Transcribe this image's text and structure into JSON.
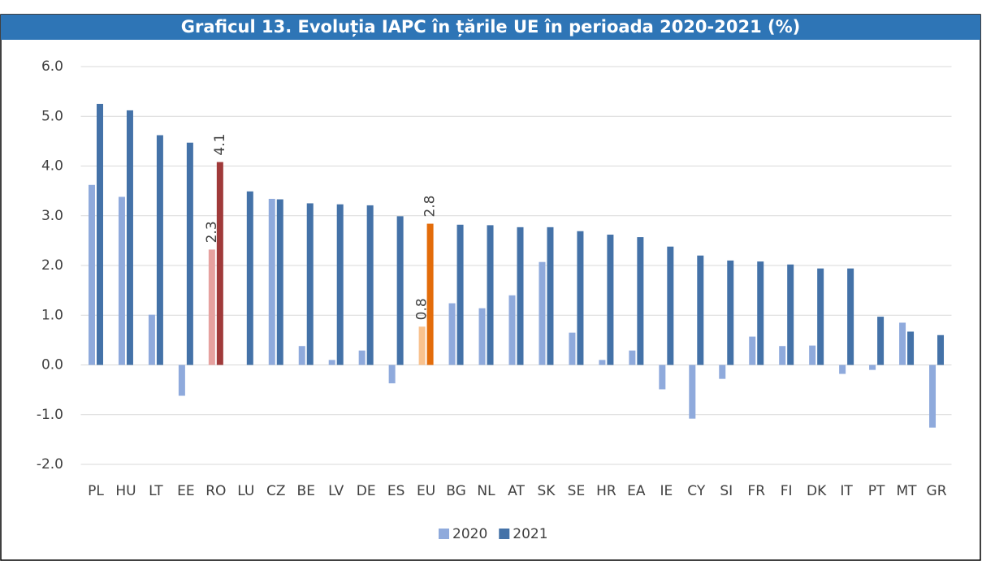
{
  "chart_data": {
    "type": "bar",
    "title": "Graficul 13. Evoluția IAPC în țările UE în perioada 2020-2021 (%)",
    "categories": [
      "PL",
      "HU",
      "LT",
      "EE",
      "RO",
      "LU",
      "CZ",
      "BE",
      "LV",
      "DE",
      "ES",
      "EU",
      "BG",
      "NL",
      "AT",
      "SK",
      "SE",
      "HR",
      "EA",
      "IE",
      "CY",
      "SI",
      "FR",
      "FI",
      "DK",
      "IT",
      "PT",
      "MT",
      "GR"
    ],
    "series": [
      {
        "name": "2020",
        "color": "#8faadc",
        "point_colors": {
          "4": "#e6a19f",
          "11": "#f9c28e"
        },
        "values": [
          3.62,
          3.38,
          1.01,
          -0.62,
          2.32,
          0.0,
          3.34,
          0.38,
          0.1,
          0.29,
          -0.37,
          0.77,
          1.24,
          1.14,
          1.4,
          2.07,
          0.65,
          0.1,
          0.29,
          -0.49,
          -1.08,
          -0.28,
          0.57,
          0.38,
          0.39,
          -0.18,
          -0.1,
          0.85,
          -1.26
        ],
        "value_labels": [
          null,
          null,
          null,
          null,
          "2.3",
          null,
          null,
          null,
          null,
          null,
          null,
          "0.8",
          null,
          null,
          null,
          null,
          null,
          null,
          null,
          null,
          null,
          null,
          null,
          null,
          null,
          null,
          null,
          null,
          null
        ]
      },
      {
        "name": "2021",
        "color": "#4472a8",
        "point_colors": {
          "4": "#a03a3a",
          "11": "#e36c0a"
        },
        "values": [
          5.25,
          5.12,
          4.62,
          4.47,
          4.08,
          3.49,
          3.33,
          3.25,
          3.23,
          3.21,
          2.99,
          2.84,
          2.82,
          2.81,
          2.77,
          2.77,
          2.69,
          2.62,
          2.57,
          2.38,
          2.2,
          2.1,
          2.08,
          2.02,
          1.94,
          1.94,
          0.97,
          0.67,
          0.6
        ],
        "value_labels": [
          null,
          null,
          null,
          null,
          "4.1",
          null,
          null,
          null,
          null,
          null,
          null,
          "2.8",
          null,
          null,
          null,
          null,
          null,
          null,
          null,
          null,
          null,
          null,
          null,
          null,
          null,
          null,
          null,
          null,
          null
        ]
      }
    ],
    "ylim": [
      -2,
      6
    ],
    "yticks": [
      {
        "value": -2,
        "label": "-2.0"
      },
      {
        "value": -1,
        "label": "-1.0"
      },
      {
        "value": 0,
        "label": "0.0"
      },
      {
        "value": 1,
        "label": "1.0"
      },
      {
        "value": 2,
        "label": "2.0"
      },
      {
        "value": 3,
        "label": "3.0"
      },
      {
        "value": 4,
        "label": "4.0"
      },
      {
        "value": 5,
        "label": "5.0"
      },
      {
        "value": 6,
        "label": "6.0"
      }
    ],
    "grid": true,
    "legend": "bottom"
  }
}
